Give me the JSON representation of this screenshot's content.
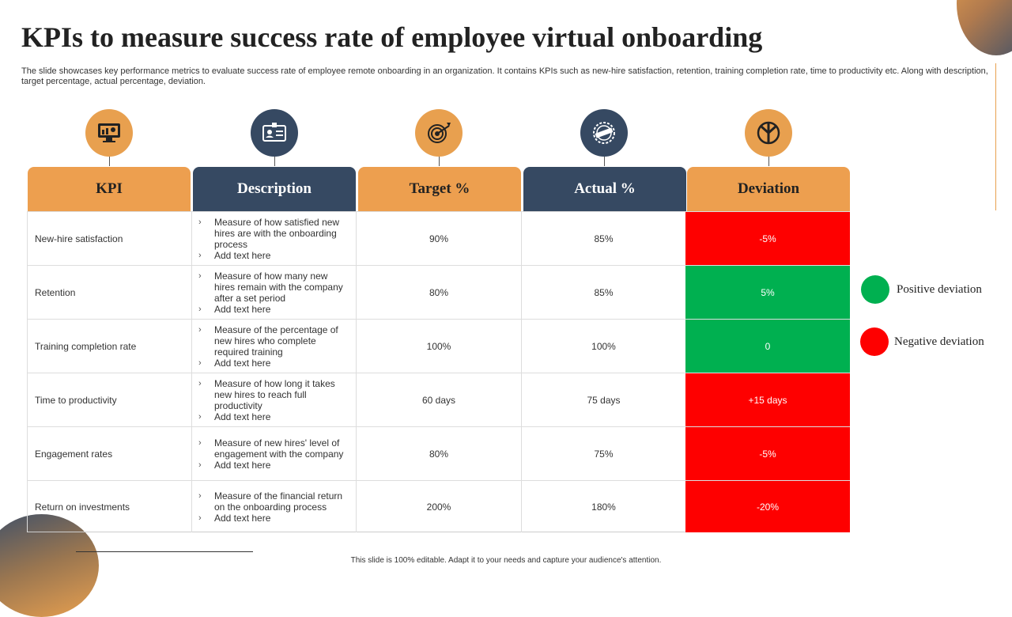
{
  "slide": {
    "title": "KPIs to measure success rate of employee virtual onboarding",
    "subtitle": "The slide showcases key performance metrics to evaluate success rate of employee remote onboarding in an organization. It contains KPIs such as new-hire satisfaction, retention, training completion rate, time to productivity etc. Along with description, target percentage, actual percentage, deviation.",
    "footer": "This slide is 100% editable. Adapt it to your needs and capture your audience's attention."
  },
  "icons": [
    "computer-chart-icon",
    "id-card-icon",
    "target-icon",
    "quality-seal-icon",
    "shield-icon"
  ],
  "table": {
    "headers": [
      "KPI",
      "Description",
      "Target %",
      "Actual %",
      "Deviation"
    ],
    "rows": [
      {
        "kpi": "New-hire satisfaction",
        "desc": "Measure of how satisfied new hires are with the  onboarding process",
        "add": "Add text here",
        "target": "90%",
        "actual": "85%",
        "deviation": "-5%",
        "status": "negative"
      },
      {
        "kpi": "Retention",
        "desc": "Measure of how many new hires remain with the company after a set period",
        "add": "Add text here",
        "target": "80%",
        "actual": "85%",
        "deviation": "5%",
        "status": "positive"
      },
      {
        "kpi": "Training completion rate",
        "desc": "Measure of the percentage of new hires who complete required training",
        "add": "Add text here",
        "target": "100%",
        "actual": "100%",
        "deviation": "0",
        "status": "positive"
      },
      {
        "kpi": "Time to productivity",
        "desc": "Measure of how long it takes new hires to reach full productivity",
        "add": "Add text here",
        "target": "60 days",
        "actual": "75 days",
        "deviation": "+15 days",
        "status": "negative"
      },
      {
        "kpi": "Engagement rates",
        "desc": "Measure of new hires' level of engagement with the company",
        "add": "Add text here",
        "target": "80%",
        "actual": "75%",
        "deviation": "-5%",
        "status": "negative"
      },
      {
        "kpi": "Return on investments",
        "desc": "Measure of the financial return on the onboarding process",
        "add": "Add text here",
        "target": "200%",
        "actual": "180%",
        "deviation": "-20%",
        "status": "negative"
      }
    ]
  },
  "legend": {
    "positive": "Positive deviation",
    "negative": "Negative deviation"
  },
  "colors": {
    "orange": "#ed9f4f",
    "navy": "#364962",
    "positive": "#00b050",
    "negative": "#fe0000"
  }
}
